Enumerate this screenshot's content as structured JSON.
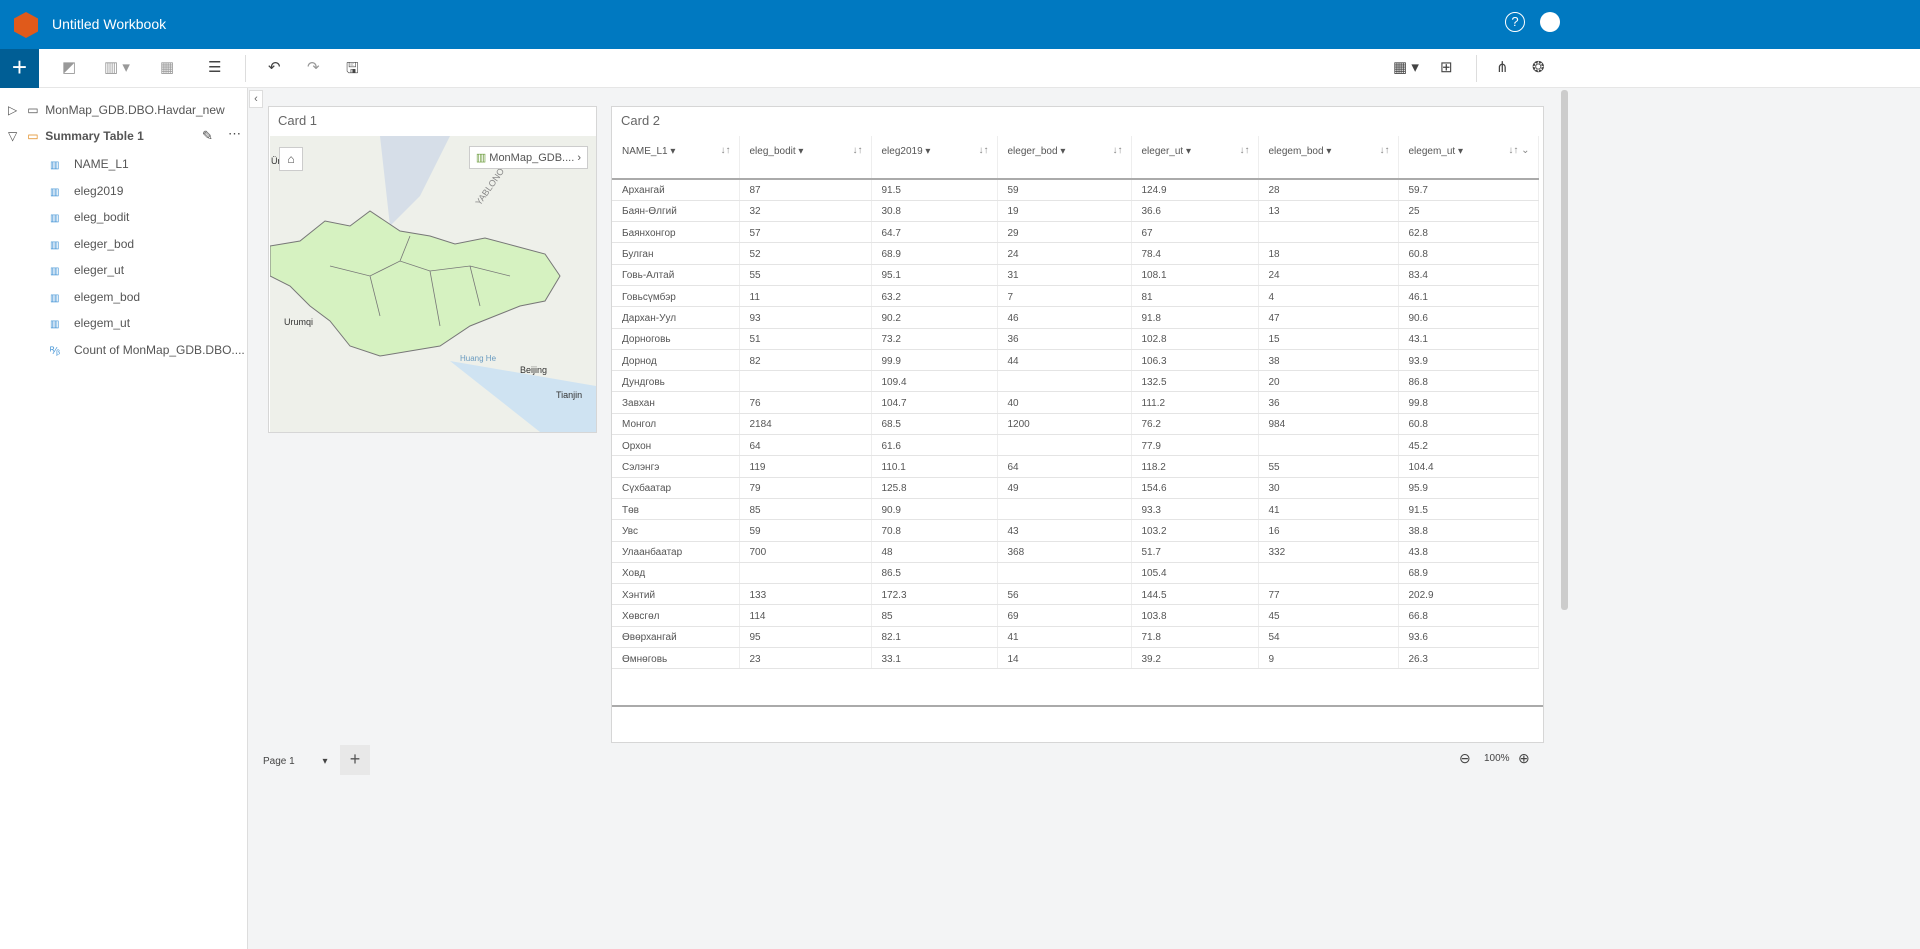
{
  "header": {
    "title": "Untitled Workbook",
    "help_icon": "?"
  },
  "toolbar": {
    "add": "+",
    "undo": "↶",
    "redo": "↷"
  },
  "sidebar": {
    "dataset": "MonMap_GDB.DBO.Havdar_new",
    "summary": "Summary Table 1",
    "fields": [
      "NAME_L1",
      "eleg2019",
      "eleg_bodit",
      "eleger_bod",
      "eleger_ut",
      "elegem_bod",
      "elegem_ut"
    ],
    "count_field": "Count of MonMap_GDB.DBO...."
  },
  "card1": {
    "title": "Card 1",
    "layer": "MonMap_GDB....",
    "labels": [
      "Urumqi",
      "Beijing",
      "Tianjin",
      "Huang He",
      "YABLONOVY",
      "Ürü"
    ]
  },
  "card2": {
    "title": "Card 2",
    "columns": [
      "NAME_L1",
      "eleg_bodit",
      "eleg2019",
      "eleger_bod",
      "eleger_ut",
      "elegem_bod",
      "elegem_ut"
    ],
    "rows": [
      [
        "Архангай",
        "87",
        "91.5",
        "59",
        "124.9",
        "28",
        "59.7"
      ],
      [
        "Баян-Өлгий",
        "32",
        "30.8",
        "19",
        "36.6",
        "13",
        "25"
      ],
      [
        "Баянхонгор",
        "57",
        "64.7",
        "29",
        "67",
        "",
        "62.8"
      ],
      [
        "Булган",
        "52",
        "68.9",
        "24",
        "78.4",
        "18",
        "60.8"
      ],
      [
        "Говь-Алтай",
        "55",
        "95.1",
        "31",
        "108.1",
        "24",
        "83.4"
      ],
      [
        "Говьсүмбэр",
        "11",
        "63.2",
        "7",
        "81",
        "4",
        "46.1"
      ],
      [
        "Дархан-Уул",
        "93",
        "90.2",
        "46",
        "91.8",
        "47",
        "90.6"
      ],
      [
        "Дорноговь",
        "51",
        "73.2",
        "36",
        "102.8",
        "15",
        "43.1"
      ],
      [
        "Дорнод",
        "82",
        "99.9",
        "44",
        "106.3",
        "38",
        "93.9"
      ],
      [
        "Дундговь",
        "",
        "109.4",
        "",
        "132.5",
        "20",
        "86.8"
      ],
      [
        "Завхан",
        "76",
        "104.7",
        "40",
        "111.2",
        "36",
        "99.8"
      ],
      [
        "Монгол",
        "2184",
        "68.5",
        "1200",
        "76.2",
        "984",
        "60.8"
      ],
      [
        "Орхон",
        "64",
        "61.6",
        "",
        "77.9",
        "",
        "45.2"
      ],
      [
        "Сэлэнгэ",
        "119",
        "110.1",
        "64",
        "118.2",
        "55",
        "104.4"
      ],
      [
        "Сүхбаатар",
        "79",
        "125.8",
        "49",
        "154.6",
        "30",
        "95.9"
      ],
      [
        "Төв",
        "85",
        "90.9",
        "",
        "93.3",
        "41",
        "91.5"
      ],
      [
        "Увс",
        "59",
        "70.8",
        "43",
        "103.2",
        "16",
        "38.8"
      ],
      [
        "Улаанбаатар",
        "700",
        "48",
        "368",
        "51.7",
        "332",
        "43.8"
      ],
      [
        "Ховд",
        "",
        "86.5",
        "",
        "105.4",
        "",
        "68.9"
      ],
      [
        "Хэнтий",
        "133",
        "172.3",
        "56",
        "144.5",
        "77",
        "202.9"
      ],
      [
        "Хөвсгөл",
        "114",
        "85",
        "69",
        "103.8",
        "45",
        "66.8"
      ],
      [
        "Өвөрхангай",
        "95",
        "82.1",
        "41",
        "71.8",
        "54",
        "93.6"
      ],
      [
        "Өмнөговь",
        "23",
        "33.1",
        "14",
        "39.2",
        "9",
        "26.3"
      ]
    ]
  },
  "footer": {
    "page": "Page 1",
    "add_page": "+",
    "zoom": "100%"
  }
}
